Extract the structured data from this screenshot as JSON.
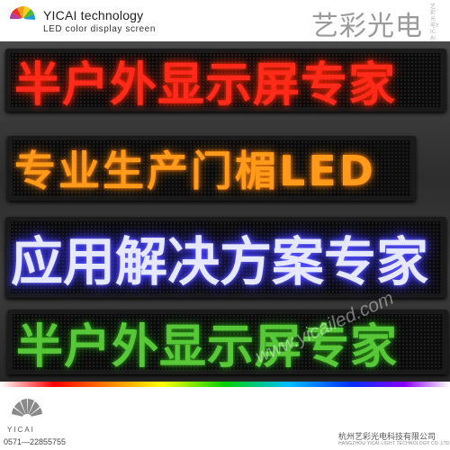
{
  "header": {
    "company_name_en": "YICAI technology",
    "tagline": "LED color  display screen",
    "brand_cn": "艺彩光电",
    "brand_vertical": "艺彩光电YICAI"
  },
  "signs": [
    {
      "text": "半户外显示屏专家",
      "color": "#ff2a1a"
    },
    {
      "text": "专业生产门楣LED",
      "color": "#ff9a1a"
    },
    {
      "text": "应用解决方案专家",
      "color": "#e6e8ff"
    },
    {
      "text": "半户外显示屏专家",
      "color": "#5fd83c"
    }
  ],
  "watermark": "www.yicailed.com",
  "footer": {
    "logo_word": "YICAI",
    "phone": "0571—22855755",
    "company_cn": "杭州艺彩光电科技有限公司",
    "company_en": "HANGZHOU YICAI LIGHT TECHNOLOGY CO.,LTD"
  }
}
